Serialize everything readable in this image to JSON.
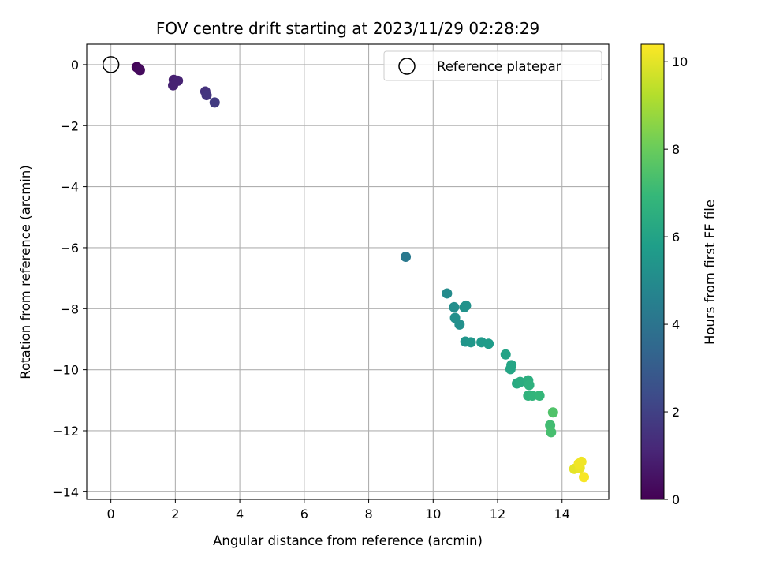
{
  "chart_data": {
    "type": "scatter",
    "title": "FOV centre drift starting at 2023/11/29 02:28:29",
    "xlabel": "Angular distance from reference (arcmin)",
    "ylabel": "Rotation from reference (arcmin)",
    "xlim": [
      -0.75,
      15.45
    ],
    "ylim": [
      -14.25,
      0.67
    ],
    "xticks": [
      0,
      2,
      4,
      6,
      8,
      10,
      12,
      14
    ],
    "yticks": [
      0,
      -2,
      -4,
      -6,
      -8,
      -10,
      -12,
      -14
    ],
    "grid": true,
    "legend": {
      "placement": "top-right",
      "entries": [
        "Reference platepar"
      ]
    },
    "reference_point": {
      "name": "Reference platepar",
      "x": 0,
      "y": 0
    },
    "colorbar": {
      "label": "Hours from first FF file",
      "colormap": "viridis",
      "range": [
        0,
        10.4
      ],
      "ticks": [
        0,
        2,
        4,
        6,
        8,
        10
      ]
    },
    "points": [
      {
        "x": 0.8,
        "y": -0.08,
        "hours": 0.1
      },
      {
        "x": 0.85,
        "y": -0.12,
        "hours": 0.2
      },
      {
        "x": 0.9,
        "y": -0.18,
        "hours": 0.3
      },
      {
        "x": 1.95,
        "y": -0.5,
        "hours": 0.9
      },
      {
        "x": 2.08,
        "y": -0.53,
        "hours": 1.0
      },
      {
        "x": 1.93,
        "y": -0.68,
        "hours": 1.0
      },
      {
        "x": 2.93,
        "y": -0.88,
        "hours": 1.5
      },
      {
        "x": 2.97,
        "y": -1.0,
        "hours": 1.6
      },
      {
        "x": 3.22,
        "y": -1.24,
        "hours": 1.8
      },
      {
        "x": 9.15,
        "y": -6.3,
        "hours": 4.2
      },
      {
        "x": 10.43,
        "y": -7.5,
        "hours": 5.0
      },
      {
        "x": 10.65,
        "y": -7.95,
        "hours": 5.1
      },
      {
        "x": 10.97,
        "y": -7.95,
        "hours": 5.3
      },
      {
        "x": 11.02,
        "y": -7.9,
        "hours": 5.3
      },
      {
        "x": 10.68,
        "y": -8.3,
        "hours": 5.2
      },
      {
        "x": 10.82,
        "y": -8.52,
        "hours": 5.2
      },
      {
        "x": 11.0,
        "y": -9.08,
        "hours": 5.4
      },
      {
        "x": 11.17,
        "y": -9.1,
        "hours": 5.5
      },
      {
        "x": 11.5,
        "y": -9.1,
        "hours": 5.6
      },
      {
        "x": 11.72,
        "y": -9.15,
        "hours": 5.7
      },
      {
        "x": 12.25,
        "y": -9.5,
        "hours": 6.0
      },
      {
        "x": 12.43,
        "y": -9.85,
        "hours": 6.1
      },
      {
        "x": 12.4,
        "y": -9.98,
        "hours": 6.1
      },
      {
        "x": 12.6,
        "y": -10.45,
        "hours": 6.3
      },
      {
        "x": 12.7,
        "y": -10.4,
        "hours": 6.4
      },
      {
        "x": 12.95,
        "y": -10.35,
        "hours": 6.5
      },
      {
        "x": 12.98,
        "y": -10.5,
        "hours": 6.6
      },
      {
        "x": 12.95,
        "y": -10.85,
        "hours": 6.7
      },
      {
        "x": 13.08,
        "y": -10.85,
        "hours": 6.8
      },
      {
        "x": 13.3,
        "y": -10.85,
        "hours": 6.9
      },
      {
        "x": 13.72,
        "y": -11.4,
        "hours": 7.5
      },
      {
        "x": 13.63,
        "y": -11.82,
        "hours": 7.2
      },
      {
        "x": 13.66,
        "y": -12.05,
        "hours": 7.3
      },
      {
        "x": 14.38,
        "y": -13.25,
        "hours": 10.0
      },
      {
        "x": 14.55,
        "y": -13.22,
        "hours": 10.1
      },
      {
        "x": 14.6,
        "y": -13.02,
        "hours": 10.2
      },
      {
        "x": 14.52,
        "y": -13.08,
        "hours": 10.2
      },
      {
        "x": 14.68,
        "y": -13.52,
        "hours": 10.3
      }
    ]
  }
}
